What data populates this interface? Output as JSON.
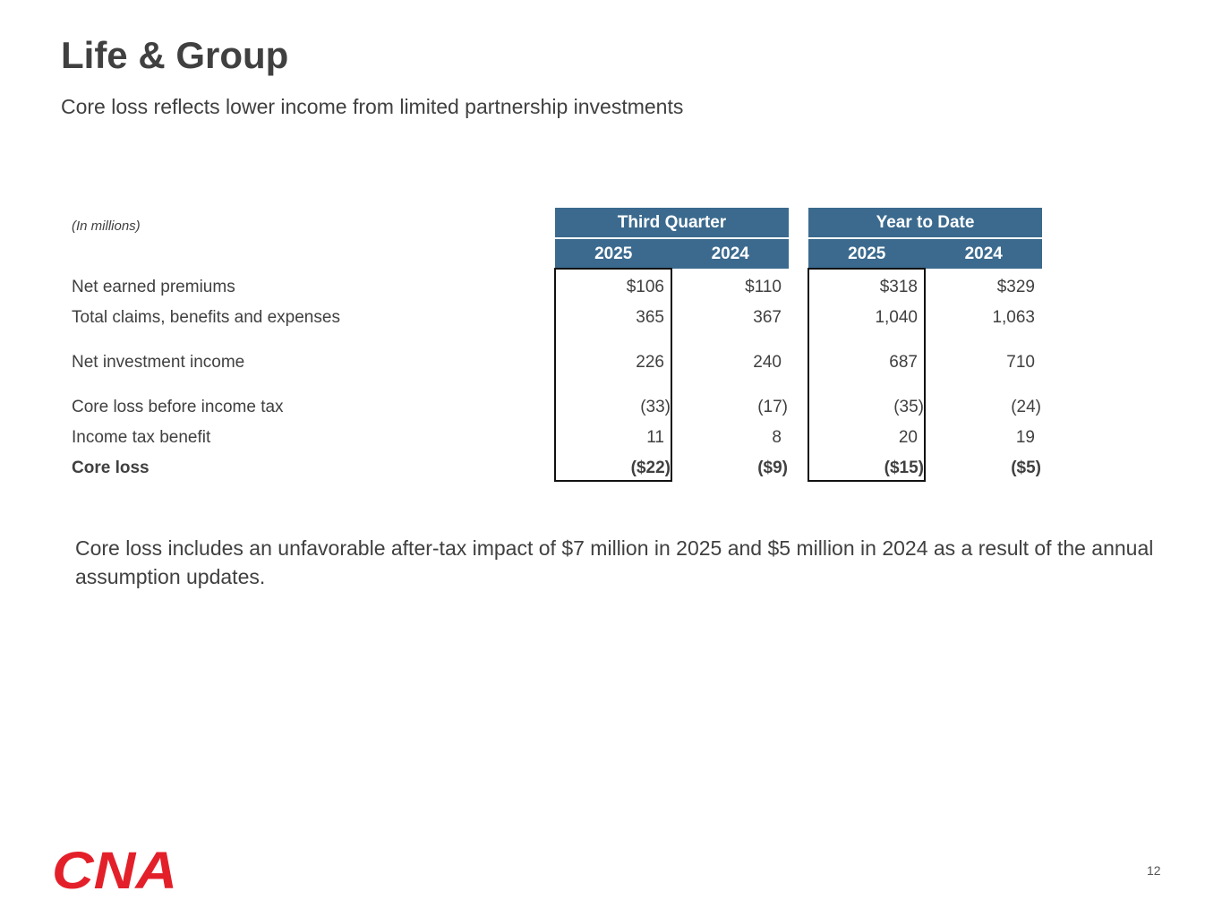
{
  "header": {
    "title": "Life & Group",
    "subtitle": "Core loss reflects lower income from limited partnership investments"
  },
  "table": {
    "units_note": "(In millions)",
    "groups": [
      "Third Quarter",
      "Year to Date"
    ],
    "years": [
      "2025",
      "2024",
      "2025",
      "2024"
    ],
    "rows": [
      {
        "label": "Net earned premiums",
        "values": [
          "$106",
          "$110",
          "$318",
          "$329"
        ],
        "bold": false
      },
      {
        "label": "Total claims, benefits and expenses",
        "values": [
          "365",
          "367",
          "1,040",
          "1,063"
        ],
        "bold": false
      },
      {
        "label": "Net investment income",
        "values": [
          "226",
          "240",
          "687",
          "710"
        ],
        "bold": false
      },
      {
        "label": "Core loss before income tax",
        "values": [
          "(33)",
          "(17)",
          "(35)",
          "(24)"
        ],
        "bold": false
      },
      {
        "label": "Income tax benefit",
        "values": [
          "11",
          "8",
          "20",
          "19"
        ],
        "bold": false
      },
      {
        "label": "Core loss",
        "values": [
          "($22)",
          "($9)",
          "($15)",
          "($5)"
        ],
        "bold": true
      }
    ],
    "header_color": "#3b6a8e"
  },
  "note": "Core loss includes an unfavorable after-tax impact of $7 million in 2025 and $5 million in 2024 as a result of the annual assumption updates.",
  "footer": {
    "logo_text": "CNA",
    "logo_color": "#e3202a",
    "page_number": "12"
  }
}
